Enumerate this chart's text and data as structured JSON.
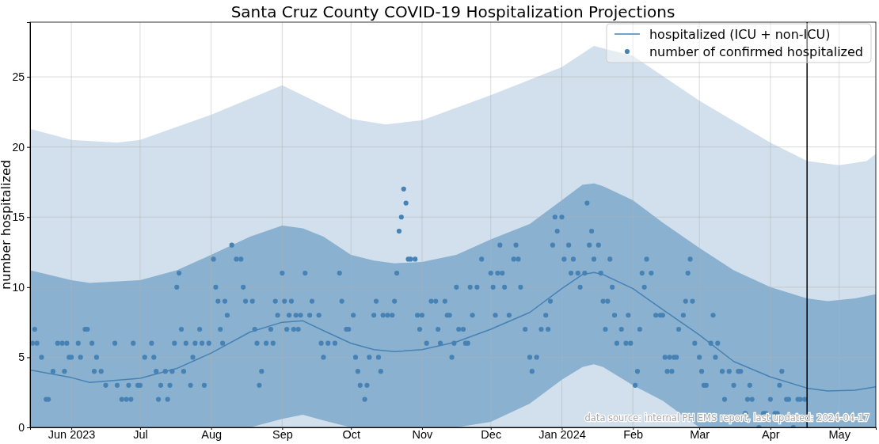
{
  "chart_data": {
    "type": "line",
    "title": "Santa Cruz County COVID-19 Hospitalization Projections",
    "ylabel": "number hospitalized",
    "xlim": [
      "2023-05-14",
      "2024-05-17"
    ],
    "xticks": [
      {
        "value": "2023-06-01",
        "label": "Jun 2023"
      },
      {
        "value": "2023-07-01",
        "label": "Jul"
      },
      {
        "value": "2023-08-01",
        "label": "Aug"
      },
      {
        "value": "2023-09-01",
        "label": "Sep"
      },
      {
        "value": "2023-10-01",
        "label": "Oct"
      },
      {
        "value": "2023-11-01",
        "label": "Nov"
      },
      {
        "value": "2023-12-01",
        "label": "Dec"
      },
      {
        "value": "2024-01-01",
        "label": "Jan 2024"
      },
      {
        "value": "2024-02-01",
        "label": "Feb"
      },
      {
        "value": "2024-03-01",
        "label": "Mar"
      },
      {
        "value": "2024-04-01",
        "label": "Apr"
      },
      {
        "value": "2024-05-01",
        "label": "May"
      }
    ],
    "ylim": [
      0,
      28.9
    ],
    "yticks": [
      0,
      5,
      10,
      15,
      20,
      25
    ],
    "grid": true,
    "legend": "top right",
    "ref_lines": [
      {
        "axis": "x",
        "value": "2024-04-17",
        "color": "#000000"
      }
    ],
    "annotations": [
      "data source: internal PH EMS report, last updated: 2024-04-17"
    ],
    "series": [
      {
        "type": "area",
        "color": "#d1e0ec",
        "x": [
          "2023-05-14",
          "2023-06-01",
          "2023-06-21",
          "2023-07-01",
          "2023-08-01",
          "2023-09-01",
          "2023-10-01",
          "2023-10-16",
          "2023-11-01",
          "2023-12-01",
          "2024-01-01",
          "2024-01-15",
          "2024-02-01",
          "2024-03-01",
          "2024-04-01",
          "2024-04-17",
          "2024-05-01",
          "2024-05-13",
          "2024-05-17"
        ],
        "values": [
          21.3,
          20.5,
          20.3,
          20.5,
          22.3,
          24.4,
          22.0,
          21.6,
          21.9,
          23.7,
          25.7,
          27.2,
          26.5,
          23.3,
          20.3,
          19.0,
          18.7,
          19.0,
          19.5
        ]
      },
      {
        "name": "hospitalized (ICU + non-ICU)",
        "color": "#4682b4",
        "x": [
          "2023-05-14",
          "2023-06-01",
          "2023-06-09",
          "2023-07-01",
          "2023-07-17",
          "2023-08-01",
          "2023-08-18",
          "2023-09-01",
          "2023-09-10",
          "2023-09-19",
          "2023-10-01",
          "2023-10-11",
          "2023-10-20",
          "2023-11-01",
          "2023-11-16",
          "2023-12-01",
          "2023-12-18",
          "2024-01-01",
          "2024-01-10",
          "2024-01-15",
          "2024-01-19",
          "2024-02-01",
          "2024-02-14",
          "2024-03-01",
          "2024-03-16",
          "2024-04-01",
          "2024-04-17",
          "2024-04-26",
          "2024-05-08",
          "2024-05-17"
        ],
        "values": [
          4.1,
          3.55,
          3.2,
          3.5,
          4.2,
          5.3,
          6.8,
          7.5,
          7.6,
          6.9,
          6.0,
          5.55,
          5.4,
          5.55,
          6.1,
          7.0,
          8.2,
          9.9,
          10.9,
          11.05,
          10.9,
          9.9,
          8.4,
          6.6,
          4.7,
          3.6,
          2.8,
          2.6,
          2.65,
          2.9
        ],
        "lower": [
          0,
          0,
          0,
          0,
          0,
          0,
          0,
          0.6,
          0.9,
          0.5,
          0,
          0,
          0,
          0,
          0,
          0.4,
          1.7,
          3.4,
          4.3,
          4.5,
          4.3,
          3.0,
          1.9,
          0,
          0,
          0,
          0,
          0,
          0,
          0
        ],
        "upper": [
          11.2,
          10.5,
          10.3,
          10.5,
          11.2,
          12.3,
          13.6,
          14.4,
          14.2,
          13.6,
          12.3,
          11.9,
          11.7,
          11.8,
          12.3,
          13.4,
          14.5,
          16.2,
          17.3,
          17.4,
          17.2,
          16.2,
          14.6,
          12.8,
          11.2,
          10.0,
          9.2,
          9.0,
          9.2,
          9.5
        ]
      },
      {
        "type": "scatter",
        "name": "number of confirmed hospitalized",
        "color": "#4682b4",
        "marker": "circle",
        "x": [
          "2023-05-15",
          "2023-05-16",
          "2023-05-17",
          "2023-05-19",
          "2023-05-21",
          "2023-05-22",
          "2023-05-24",
          "2023-05-26",
          "2023-05-28",
          "2023-05-29",
          "2023-05-30",
          "2023-05-31",
          "2023-06-01",
          "2023-06-04",
          "2023-06-05",
          "2023-06-07",
          "2023-06-08",
          "2023-06-10",
          "2023-06-11",
          "2023-06-12",
          "2023-06-14",
          "2023-06-16",
          "2023-06-20",
          "2023-06-21",
          "2023-06-23",
          "2023-06-25",
          "2023-06-26",
          "2023-06-27",
          "2023-06-28",
          "2023-06-30",
          "2023-07-01",
          "2023-07-03",
          "2023-07-06",
          "2023-07-07",
          "2023-07-08",
          "2023-07-09",
          "2023-07-10",
          "2023-07-12",
          "2023-07-13",
          "2023-07-14",
          "2023-07-15",
          "2023-07-16",
          "2023-07-17",
          "2023-07-18",
          "2023-07-19",
          "2023-07-20",
          "2023-07-21",
          "2023-07-23",
          "2023-07-24",
          "2023-07-25",
          "2023-07-27",
          "2023-07-28",
          "2023-07-29",
          "2023-07-31",
          "2023-08-02",
          "2023-08-03",
          "2023-08-04",
          "2023-08-05",
          "2023-08-06",
          "2023-08-07",
          "2023-08-08",
          "2023-08-10",
          "2023-08-12",
          "2023-08-14",
          "2023-08-15",
          "2023-08-16",
          "2023-08-19",
          "2023-08-20",
          "2023-08-21",
          "2023-08-22",
          "2023-08-23",
          "2023-08-25",
          "2023-08-27",
          "2023-08-28",
          "2023-08-29",
          "2023-08-30",
          "2023-09-01",
          "2023-09-02",
          "2023-09-03",
          "2023-09-04",
          "2023-09-05",
          "2023-09-06",
          "2023-09-07",
          "2023-09-08",
          "2023-09-09",
          "2023-09-11",
          "2023-09-13",
          "2023-09-14",
          "2023-09-17",
          "2023-09-18",
          "2023-09-19",
          "2023-09-21",
          "2023-09-24",
          "2023-09-26",
          "2023-09-27",
          "2023-09-29",
          "2023-09-30",
          "2023-10-02",
          "2023-10-03",
          "2023-10-04",
          "2023-10-05",
          "2023-10-07",
          "2023-10-08",
          "2023-10-09",
          "2023-10-11",
          "2023-10-12",
          "2023-10-13",
          "2023-10-14",
          "2023-10-15",
          "2023-10-17",
          "2023-10-19",
          "2023-10-20",
          "2023-10-21",
          "2023-10-22",
          "2023-10-23",
          "2023-10-24",
          "2023-10-25",
          "2023-10-26",
          "2023-10-27",
          "2023-10-29",
          "2023-10-30",
          "2023-10-31",
          "2023-11-01",
          "2023-11-03",
          "2023-11-05",
          "2023-11-07",
          "2023-11-08",
          "2023-11-09",
          "2023-11-11",
          "2023-11-12",
          "2023-11-13",
          "2023-11-14",
          "2023-11-15",
          "2023-11-16",
          "2023-11-17",
          "2023-11-19",
          "2023-11-20",
          "2023-11-21",
          "2023-11-22",
          "2023-11-23",
          "2023-11-25",
          "2023-11-27",
          "2023-12-01",
          "2023-12-02",
          "2023-12-03",
          "2023-12-04",
          "2023-12-05",
          "2023-12-06",
          "2023-12-07",
          "2023-12-09",
          "2023-12-11",
          "2023-12-12",
          "2023-12-13",
          "2023-12-14",
          "2023-12-16",
          "2023-12-18",
          "2023-12-19",
          "2023-12-21",
          "2023-12-23",
          "2023-12-25",
          "2023-12-26",
          "2023-12-27",
          "2023-12-28",
          "2023-12-29",
          "2023-12-30",
          "2024-01-01",
          "2024-01-02",
          "2024-01-04",
          "2024-01-05",
          "2024-01-06",
          "2024-01-08",
          "2024-01-09",
          "2024-01-11",
          "2024-01-12",
          "2024-01-13",
          "2024-01-14",
          "2024-01-15",
          "2024-01-17",
          "2024-01-18",
          "2024-01-19",
          "2024-01-20",
          "2024-01-21",
          "2024-01-22",
          "2024-01-23",
          "2024-01-24",
          "2024-01-25",
          "2024-01-27",
          "2024-01-29",
          "2024-01-30",
          "2024-01-31",
          "2024-02-02",
          "2024-02-03",
          "2024-02-04",
          "2024-02-05",
          "2024-02-06",
          "2024-02-07",
          "2024-02-09",
          "2024-02-11",
          "2024-02-13",
          "2024-02-14",
          "2024-02-15",
          "2024-02-16",
          "2024-02-17",
          "2024-02-18",
          "2024-02-19",
          "2024-02-20",
          "2024-02-21",
          "2024-02-23",
          "2024-02-24",
          "2024-02-25",
          "2024-02-26",
          "2024-02-27",
          "2024-02-28",
          "2024-03-01",
          "2024-03-02",
          "2024-03-03",
          "2024-03-04",
          "2024-03-06",
          "2024-03-07",
          "2024-03-08",
          "2024-03-09",
          "2024-03-11",
          "2024-03-12",
          "2024-03-14",
          "2024-03-16",
          "2024-03-18",
          "2024-03-19",
          "2024-03-21",
          "2024-03-22",
          "2024-03-23",
          "2024-03-24",
          "2024-03-27",
          "2024-03-29",
          "2024-03-30",
          "2024-04-01",
          "2024-04-03",
          "2024-04-04",
          "2024-04-05",
          "2024-04-06",
          "2024-04-08",
          "2024-04-09",
          "2024-04-11",
          "2024-04-13",
          "2024-04-14",
          "2024-04-16"
        ],
        "values": [
          6,
          7,
          6,
          5,
          2,
          2,
          4,
          6,
          6,
          4,
          6,
          5,
          5,
          6,
          5,
          7,
          7,
          6,
          4,
          5,
          4,
          3,
          6,
          3,
          2,
          2,
          3,
          2,
          6,
          3,
          3,
          5,
          6,
          5,
          4,
          2,
          3,
          4,
          2,
          3,
          4,
          6,
          10,
          11,
          7,
          4,
          6,
          3,
          5,
          6,
          7,
          6,
          3,
          6,
          12,
          10,
          9,
          7,
          6,
          9,
          8,
          13,
          12,
          12,
          10,
          9,
          9,
          7,
          6,
          3,
          4,
          6,
          7,
          6,
          9,
          8,
          11,
          9,
          7,
          8,
          9,
          7,
          8,
          7,
          8,
          11,
          8,
          9,
          8,
          6,
          5,
          6,
          6,
          11,
          9,
          7,
          7,
          8,
          5,
          4,
          3,
          2,
          3,
          5,
          8,
          9,
          5,
          4,
          8,
          8,
          8,
          9,
          11,
          14,
          15,
          17,
          16,
          12,
          12,
          12,
          8,
          7,
          8,
          6,
          9,
          9,
          7,
          6,
          9,
          8,
          8,
          5,
          6,
          10,
          7,
          7,
          6,
          6,
          10,
          8,
          10,
          12,
          11,
          10,
          8,
          11,
          13,
          11,
          10,
          8,
          12,
          13,
          12,
          10,
          7,
          5,
          4,
          5,
          7,
          8,
          7,
          9,
          13,
          15,
          14,
          15,
          12,
          13,
          11,
          12,
          11,
          10,
          11,
          16,
          13,
          14,
          12,
          13,
          11,
          9,
          7,
          9,
          12,
          10,
          8,
          6,
          7,
          6,
          8,
          6,
          3,
          4,
          7,
          11,
          10,
          12,
          11,
          8,
          8,
          8,
          5,
          4,
          5,
          4,
          5,
          5,
          7,
          8,
          9,
          11,
          12,
          9,
          6,
          5,
          4,
          3,
          3,
          6,
          8,
          5,
          6,
          4,
          2,
          4,
          3,
          4,
          4,
          1,
          2,
          3,
          2,
          0,
          1,
          1,
          2,
          1,
          1,
          3,
          4,
          2,
          2,
          0,
          2,
          2,
          2
        ]
      }
    ]
  }
}
